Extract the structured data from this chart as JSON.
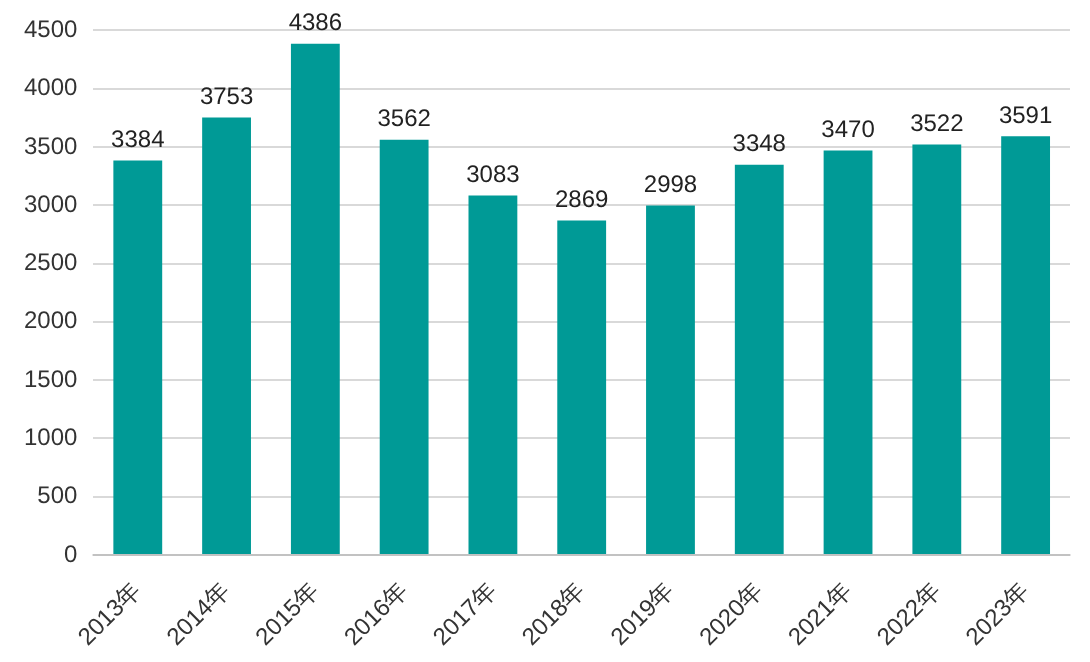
{
  "chart_data": {
    "type": "bar",
    "categories": [
      "2013年",
      "2014年",
      "2015年",
      "2016年",
      "2017年",
      "2018年",
      "2019年",
      "2020年",
      "2021年",
      "2022年",
      "2023年"
    ],
    "values": [
      3384,
      3753,
      4386,
      3562,
      3083,
      2869,
      2998,
      3348,
      3470,
      3522,
      3591
    ],
    "color": "#009a96",
    "ylim": [
      0,
      4500
    ],
    "yticks": [
      0,
      500,
      1000,
      1500,
      2000,
      2500,
      3000,
      3500,
      4000,
      4500
    ],
    "grid": "y",
    "data_labels": true
  }
}
